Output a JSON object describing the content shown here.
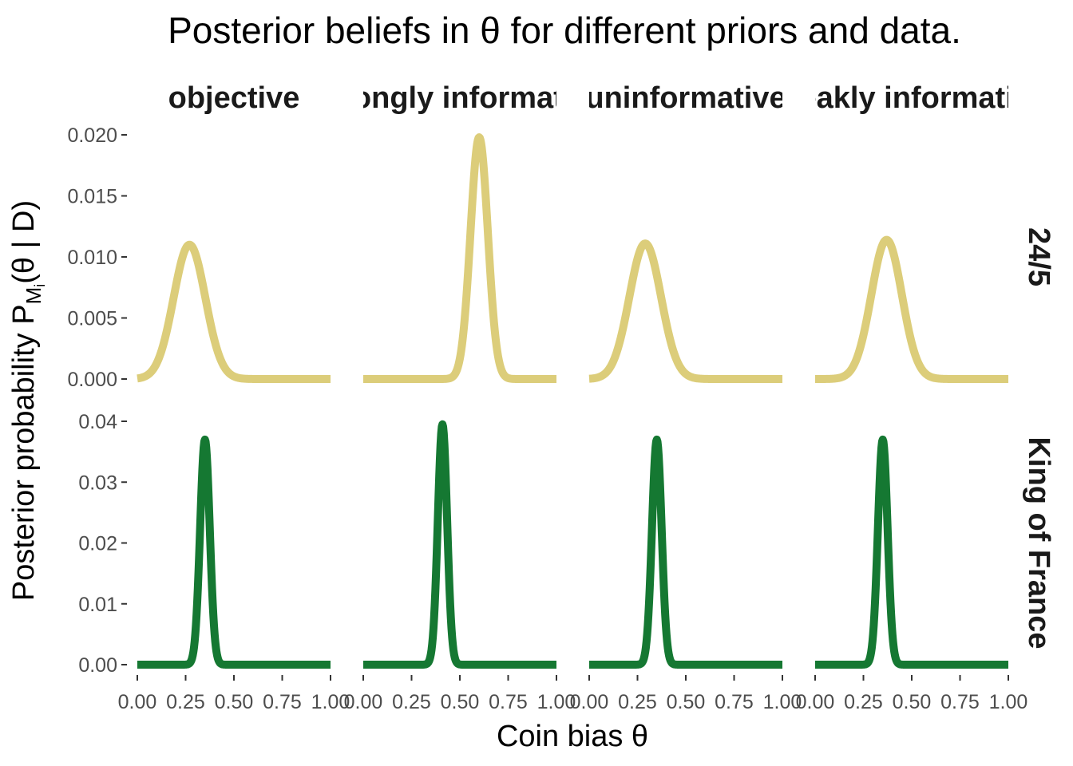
{
  "chart_data": {
    "type": "line",
    "title": "Posterior beliefs in θ for different priors and data.",
    "xlabel": "Coin bias θ",
    "ylabel": {
      "main": "Posterior probability P",
      "sub": "M",
      "subsub": "i",
      "tail": "(θ | D)"
    },
    "columns": [
      "objective",
      "strongly informative",
      "uninformative",
      "weakly informative"
    ],
    "rows": [
      {
        "label": "24/5",
        "color": "#dccd7a",
        "ylim": [
          0,
          0.02
        ],
        "yticks": [
          0.0,
          0.005,
          0.01,
          0.015,
          0.02
        ],
        "ytick_labels": [
          "0.000",
          "0.005",
          "0.010",
          "0.015",
          "0.020"
        ],
        "series": [
          {
            "column": "objective",
            "mode": 0.27,
            "peak": 0.011,
            "sd": 0.082
          },
          {
            "column": "strongly informative",
            "mode": 0.6,
            "peak": 0.0198,
            "sd": 0.045
          },
          {
            "column": "uninformative",
            "mode": 0.29,
            "peak": 0.0111,
            "sd": 0.082
          },
          {
            "column": "weakly informative",
            "mode": 0.37,
            "peak": 0.0114,
            "sd": 0.079
          }
        ]
      },
      {
        "label": "King of France",
        "color": "#157832",
        "ylim": [
          0,
          0.04
        ],
        "yticks": [
          0.0,
          0.01,
          0.02,
          0.03,
          0.04
        ],
        "ytick_labels": [
          "0.00",
          "0.01",
          "0.02",
          "0.03",
          "0.04"
        ],
        "series": [
          {
            "column": "objective",
            "mode": 0.35,
            "peak": 0.037,
            "sd": 0.025
          },
          {
            "column": "strongly informative",
            "mode": 0.41,
            "peak": 0.0395,
            "sd": 0.024
          },
          {
            "column": "uninformative",
            "mode": 0.35,
            "peak": 0.037,
            "sd": 0.025
          },
          {
            "column": "weakly informative",
            "mode": 0.35,
            "peak": 0.037,
            "sd": 0.025
          }
        ]
      }
    ],
    "xlim": [
      0,
      1
    ],
    "xticks": [
      0.0,
      0.25,
      0.5,
      0.75,
      1.0
    ],
    "xtick_labels": [
      "0.00",
      "0.25",
      "0.50",
      "0.75",
      "1.00"
    ],
    "grid": false,
    "legend": "none"
  }
}
